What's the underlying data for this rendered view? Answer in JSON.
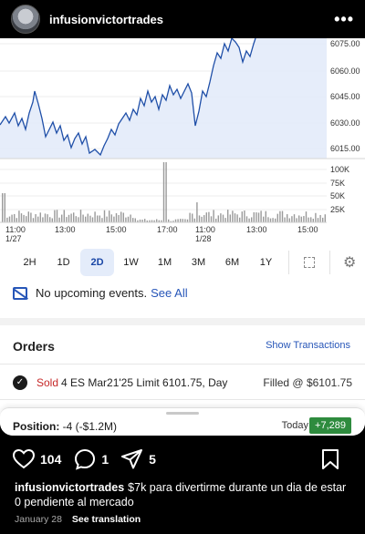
{
  "post": {
    "username": "infusionvictortrades",
    "more_icon": "more-horizontal-icon"
  },
  "chart": {
    "y_labels": [
      "6075.00",
      "6060.00",
      "6045.00",
      "6030.00",
      "6015.00"
    ],
    "vol_labels": [
      "100K",
      "75K",
      "50K",
      "25K"
    ],
    "x_labels": [
      "11:00",
      "13:00",
      "15:00",
      "17:00",
      "11:00",
      "13:00",
      "15:00"
    ],
    "date_labels": [
      "1/27",
      "1/28"
    ],
    "line_color": "#1f4fa8",
    "fill_color": "#e3ebf9"
  },
  "timeframes": [
    "2H",
    "1D",
    "2D",
    "1W",
    "1M",
    "3M",
    "6M",
    "1Y"
  ],
  "active_timeframe": "2D",
  "events": {
    "text": "No upcoming events.",
    "link": "See All"
  },
  "orders": {
    "title": "Orders",
    "show_transactions": "Show Transactions",
    "row": {
      "side": "Sold",
      "detail": "4 ES Mar21'25 Limit 6101.75, Day",
      "status": "Filled @ $6101.75"
    }
  },
  "position": {
    "label": "Position:",
    "value": "-4 (-$1.2M)",
    "today_label": "Today",
    "today_value": "+7,289",
    "today_color": "#2e8b3e"
  },
  "actions": {
    "likes": "104",
    "comments": "1",
    "shares": "5"
  },
  "caption": {
    "username": "infusionvictortrades",
    "text": "$7k para divertirme durante un dia de estar 0 pendiente al mercado"
  },
  "meta": {
    "date": "January 28",
    "see_translation": "See translation"
  }
}
